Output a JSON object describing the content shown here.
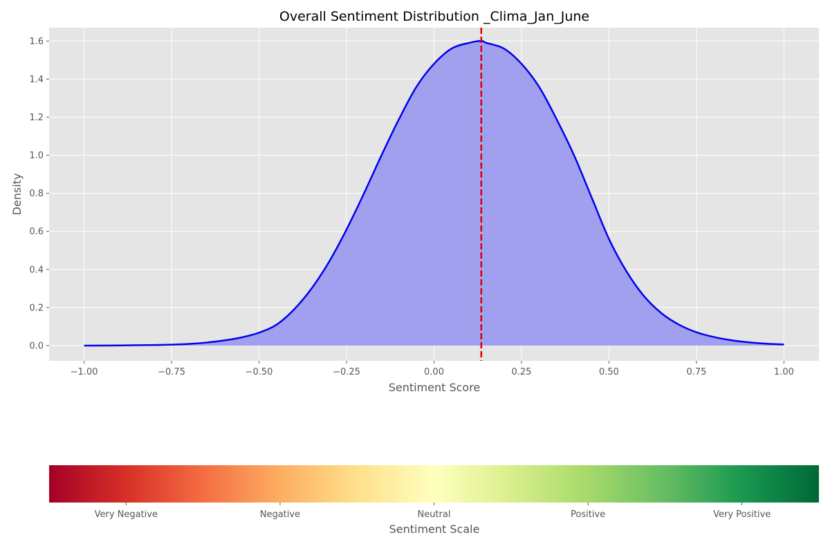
{
  "chart_data": [
    {
      "type": "area",
      "title": "Overall Sentiment Distribution _Clima_Jan_June",
      "xlabel": "Sentiment Score",
      "ylabel": "Density",
      "xlim": [
        -1.1,
        1.1
      ],
      "ylim": [
        -0.08,
        1.67
      ],
      "grid": true,
      "x_ticks": [
        -1.0,
        -0.75,
        -0.5,
        -0.25,
        0.0,
        0.25,
        0.5,
        0.75,
        1.0
      ],
      "x_tick_labels": [
        "−1.00",
        "−0.75",
        "−0.50",
        "−0.25",
        "0.00",
        "0.25",
        "0.50",
        "0.75",
        "1.00"
      ],
      "y_ticks": [
        0.0,
        0.2,
        0.4,
        0.6,
        0.8,
        1.0,
        1.2,
        1.4,
        1.6
      ],
      "y_tick_labels": [
        "0.0",
        "0.2",
        "0.4",
        "0.6",
        "0.8",
        "1.0",
        "1.2",
        "1.4",
        "1.6"
      ],
      "x": [
        -1.0,
        -0.9,
        -0.8,
        -0.75,
        -0.7,
        -0.65,
        -0.6,
        -0.55,
        -0.5,
        -0.45,
        -0.4,
        -0.35,
        -0.3,
        -0.25,
        -0.2,
        -0.15,
        -0.1,
        -0.05,
        0.0,
        0.05,
        0.1,
        0.135,
        0.15,
        0.2,
        0.25,
        0.3,
        0.35,
        0.4,
        0.45,
        0.5,
        0.55,
        0.6,
        0.65,
        0.7,
        0.75,
        0.8,
        0.85,
        0.9,
        0.95,
        1.0
      ],
      "y": [
        0.0,
        0.001,
        0.003,
        0.005,
        0.009,
        0.016,
        0.027,
        0.043,
        0.068,
        0.11,
        0.19,
        0.3,
        0.44,
        0.61,
        0.8,
        1.0,
        1.19,
        1.36,
        1.48,
        1.56,
        1.59,
        1.6,
        1.59,
        1.56,
        1.48,
        1.36,
        1.19,
        1.0,
        0.78,
        0.56,
        0.39,
        0.26,
        0.17,
        0.11,
        0.07,
        0.045,
        0.028,
        0.017,
        0.01,
        0.006
      ],
      "line_color": "#0000ee",
      "fill_color": "#a0a0ee",
      "reference_line": {
        "x": 0.135,
        "color": "#dd0000",
        "style": "dashed"
      }
    },
    {
      "type": "colorbar",
      "xlabel": "Sentiment Scale",
      "tick_labels": [
        "Very Negative",
        "Negative",
        "Neutral",
        "Positive",
        "Very Positive"
      ],
      "colormap_stops": [
        "#a50026",
        "#d73027",
        "#f46d43",
        "#fdae61",
        "#fee08b",
        "#ffffbf",
        "#d9ef8b",
        "#a6d96a",
        "#66bd63",
        "#1a9850",
        "#006837"
      ]
    }
  ]
}
